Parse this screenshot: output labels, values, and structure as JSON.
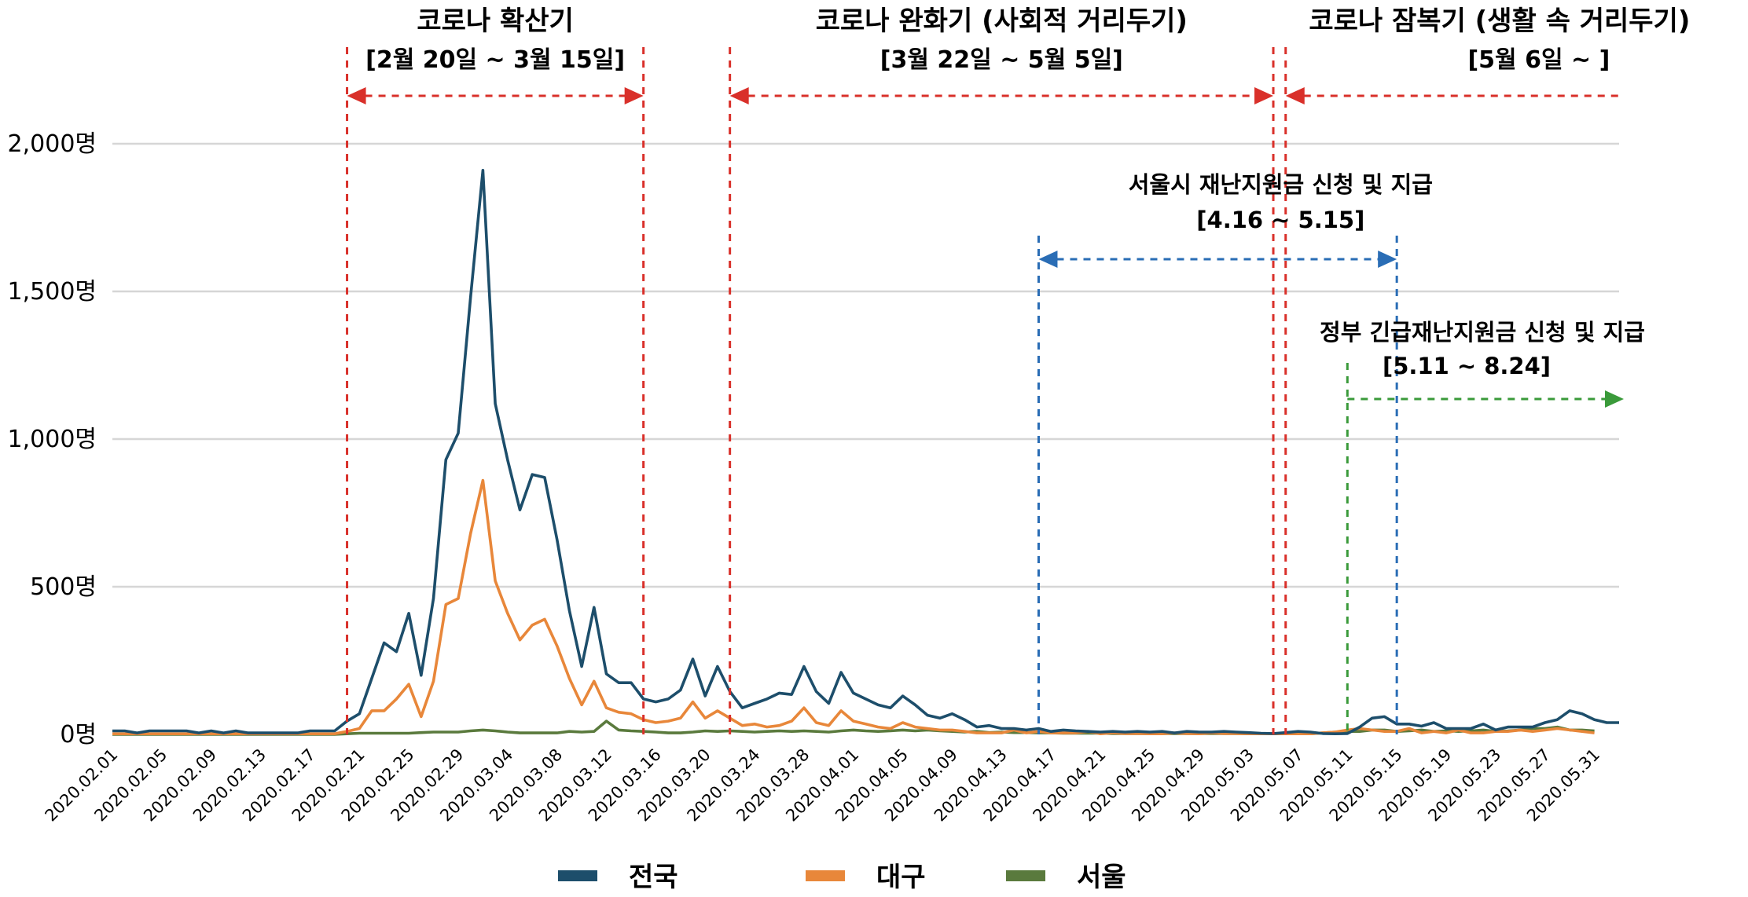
{
  "chart_data": {
    "type": "line",
    "title": "",
    "xlabel": "",
    "ylabel": "",
    "ylim": [
      0,
      2000
    ],
    "yticks": [
      0,
      500,
      1000,
      1500,
      2000
    ],
    "ytick_labels": [
      "0명",
      "500명",
      "1,000명",
      "1,500명",
      "2,000명"
    ],
    "grid": true,
    "x_start": "2020-02-01",
    "x_end": "2020-05-31",
    "xtick_labels": [
      "2020.02.01",
      "2020.02.05",
      "2020.02.09",
      "2020.02.13",
      "2020.02.17",
      "2020.02.21",
      "2020.02.25",
      "2020.02.29",
      "2020.03.04",
      "2020.03.08",
      "2020.03.12",
      "2020.03.16",
      "2020.03.20",
      "2020.03.24",
      "2020.03.28",
      "2020.04.01",
      "2020.04.05",
      "2020.04.09",
      "2020.04.13",
      "2020.04.17",
      "2020.04.21",
      "2020.04.25",
      "2020.04.29",
      "2020.05.03",
      "2020.05.07",
      "2020.05.11",
      "2020.05.15",
      "2020.05.19",
      "2020.05.23",
      "2020.05.27",
      "2020.05.31"
    ],
    "series": [
      {
        "name": "전국",
        "color": "#1d4e6b",
        "values": [
          12,
          12,
          5,
          12,
          12,
          12,
          12,
          5,
          12,
          5,
          12,
          5,
          5,
          5,
          5,
          5,
          12,
          12,
          12,
          45,
          70,
          190,
          310,
          280,
          410,
          200,
          460,
          930,
          1020,
          1480,
          1910,
          1120,
          930,
          760,
          880,
          870,
          660,
          420,
          230,
          430,
          205,
          175,
          175,
          120,
          110,
          120,
          150,
          255,
          130,
          230,
          145,
          90,
          105,
          120,
          140,
          135,
          230,
          145,
          105,
          210,
          140,
          120,
          100,
          90,
          130,
          100,
          65,
          55,
          70,
          50,
          25,
          30,
          20,
          20,
          15,
          20,
          10,
          15,
          12,
          10,
          8,
          10,
          8,
          10,
          8,
          10,
          5,
          10,
          8,
          8,
          10,
          8,
          6,
          4,
          3,
          6,
          10,
          8,
          3,
          2,
          3,
          25,
          55,
          60,
          35,
          35,
          28,
          40,
          20,
          20,
          20,
          35,
          15,
          25,
          25,
          25,
          40,
          50,
          80,
          70,
          50,
          40,
          40
        ]
      },
      {
        "name": "대구",
        "color": "#e8873a",
        "values": [
          2,
          2,
          2,
          2,
          2,
          2,
          2,
          2,
          2,
          2,
          2,
          2,
          2,
          2,
          2,
          2,
          2,
          2,
          2,
          10,
          20,
          80,
          80,
          120,
          170,
          60,
          180,
          440,
          460,
          680,
          860,
          520,
          410,
          320,
          370,
          390,
          300,
          190,
          100,
          180,
          90,
          75,
          70,
          50,
          40,
          45,
          55,
          110,
          55,
          80,
          55,
          30,
          35,
          25,
          30,
          45,
          90,
          40,
          30,
          80,
          45,
          35,
          25,
          20,
          40,
          25,
          20,
          15,
          15,
          10,
          5,
          5,
          5,
          15,
          5,
          10,
          5,
          5,
          5,
          10,
          2,
          5,
          3,
          3,
          2,
          2,
          5,
          3,
          2,
          5,
          3,
          3,
          2,
          2,
          2,
          2,
          2,
          2,
          5,
          8,
          15,
          20,
          15,
          10,
          10,
          20,
          5,
          10,
          5,
          15,
          5,
          5,
          10,
          10,
          15,
          10,
          15,
          20,
          15,
          10,
          5
        ]
      },
      {
        "name": "서울",
        "color": "#5a7a3d",
        "values": [
          0,
          0,
          0,
          0,
          0,
          0,
          0,
          0,
          0,
          0,
          0,
          0,
          0,
          0,
          0,
          0,
          0,
          0,
          0,
          2,
          4,
          4,
          4,
          4,
          4,
          6,
          8,
          8,
          8,
          12,
          15,
          12,
          8,
          5,
          5,
          5,
          5,
          10,
          8,
          10,
          45,
          15,
          12,
          10,
          8,
          5,
          5,
          8,
          12,
          10,
          12,
          10,
          8,
          10,
          12,
          10,
          12,
          10,
          8,
          12,
          15,
          12,
          10,
          12,
          15,
          12,
          15,
          12,
          10,
          8,
          10,
          6,
          8,
          6,
          6,
          5,
          5,
          4,
          4,
          4,
          4,
          3,
          3,
          3,
          3,
          3,
          3,
          3,
          3,
          3,
          3,
          3,
          2,
          2,
          2,
          2,
          2,
          2,
          5,
          8,
          10,
          10,
          15,
          15,
          10,
          12,
          15,
          10,
          12,
          10,
          12,
          15,
          10,
          12,
          15,
          20,
          20,
          25,
          15,
          15,
          12
        ]
      }
    ],
    "legend": [
      {
        "name": "전국",
        "color": "#1d4e6b"
      },
      {
        "name": "대구",
        "color": "#e8873a"
      },
      {
        "name": "서울",
        "color": "#5a7a3d"
      }
    ],
    "legend_position": "bottom-center"
  },
  "phases": [
    {
      "title": "코로나 확산기",
      "range": "[2월 20일 ~ 3월 15일]",
      "start_day": 19,
      "end_day": 43,
      "color": "#d9302a"
    },
    {
      "title": "코로나 완화기 (사회적 거리두기)",
      "range": "[3월 22일 ~ 5월 5일]",
      "start_day": 50,
      "end_day": 94,
      "color": "#d9302a"
    },
    {
      "title": "코로나 잠복기 (생활 속 거리두기)",
      "range": "[5월 6일 ~ ]",
      "start_day": 95,
      "end_day": 119,
      "color": "#d9302a"
    }
  ],
  "annotations": [
    {
      "title": "서울시 재난지원금 신청 및 지급",
      "range": "[4.16 ~ 5.15]",
      "start_day": 75,
      "end_day": 104,
      "color": "#2a6db5"
    },
    {
      "title": "정부 긴급재난지원금 신청 및 지급",
      "range": "[5.11 ~ 8.24]",
      "start_day": 100,
      "end_day": 119,
      "color": "#3a9a3a"
    }
  ]
}
